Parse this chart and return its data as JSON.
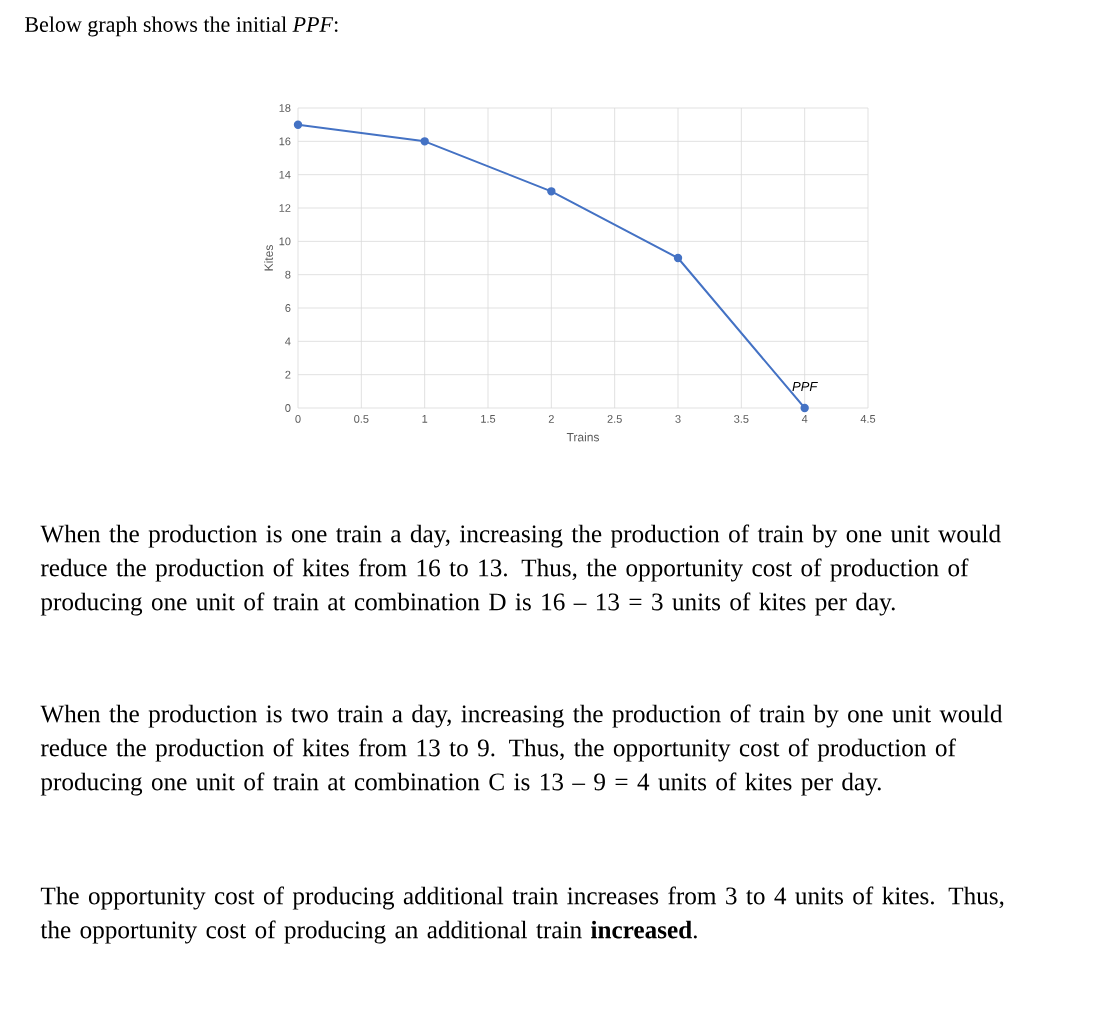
{
  "chart_data": {
    "type": "line",
    "title": "Below graph shows the initial *PPF*:",
    "xlabel": "Trains",
    "ylabel": "Kites",
    "x": [
      0,
      1,
      2,
      3,
      4
    ],
    "series": [
      {
        "name": "PPF",
        "color": "#4472c4",
        "values": [
          17,
          16,
          13,
          9,
          0
        ]
      }
    ],
    "xlim": [
      0,
      4.5
    ],
    "ylim": [
      0,
      18
    ],
    "xticks": [
      0,
      0.5,
      1,
      1.5,
      2,
      2.5,
      3,
      3.5,
      4,
      4.5
    ],
    "yticks": [
      0,
      2,
      4,
      6,
      8,
      10,
      12,
      14,
      16,
      18
    ],
    "grid": true,
    "legend": false,
    "marker": "circle",
    "line_style": "solid",
    "annotations": [
      "When the production is one train a day, increasing the production of train by one unit would reduce the production of kites from 16 to 13. Thus, the opportunity cost of production of producing one unit of train at combination D is 16 – 13 = 3 units of kites per day.",
      "When the production is two train a day, increasing the production of train by one unit would reduce the production of kites from 13 to 9. Thus, the opportunity cost of production of producing one unit of train at combination C is 13 – 9 = 4 units of kites per day.",
      "The opportunity cost of producing additional train increases from 3 to 4 units of kites. Thus, the opportunity cost of producing an additional train **increased**."
    ]
  }
}
